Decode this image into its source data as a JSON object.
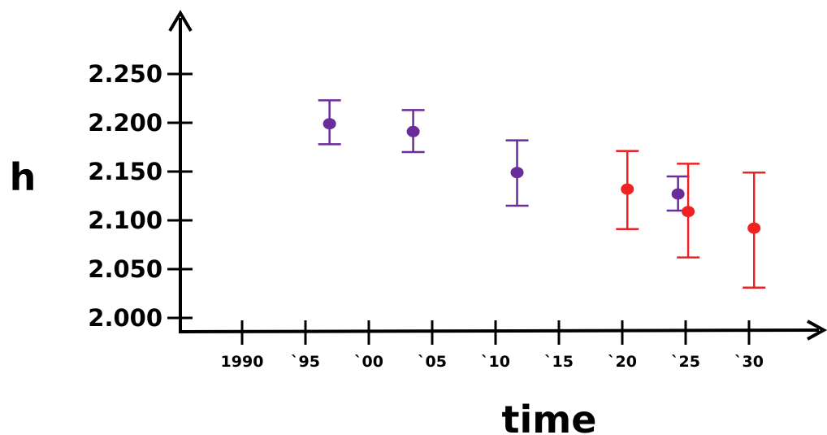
{
  "chart_data": {
    "type": "scatter",
    "title": "",
    "xlabel": "time",
    "ylabel": "h",
    "xlim": [
      1985,
      2037
    ],
    "ylim": [
      1.99,
      2.3
    ],
    "grid": false,
    "legend": "none",
    "x_ticks": [
      {
        "value": 1990,
        "label": "1990"
      },
      {
        "value": 1995,
        "label": "`95"
      },
      {
        "value": 2000,
        "label": "`00"
      },
      {
        "value": 2005,
        "label": "`05"
      },
      {
        "value": 2010,
        "label": "`10"
      },
      {
        "value": 2015,
        "label": "`15"
      },
      {
        "value": 2020,
        "label": "`20"
      },
      {
        "value": 2025,
        "label": "`25"
      },
      {
        "value": 2030,
        "label": "`30"
      }
    ],
    "y_ticks": [
      {
        "value": 2.0,
        "label": "2.000"
      },
      {
        "value": 2.05,
        "label": "2.050"
      },
      {
        "value": 2.1,
        "label": "2.100"
      },
      {
        "value": 2.15,
        "label": "2.150"
      },
      {
        "value": 2.2,
        "label": "2.200"
      },
      {
        "value": 2.25,
        "label": "2.250"
      }
    ],
    "series": [
      {
        "color": "#6a2c9a",
        "points": [
          {
            "x": 1996.9,
            "y": 2.199,
            "ylow": 2.178,
            "yhigh": 2.223
          },
          {
            "x": 2003.5,
            "y": 2.191,
            "ylow": 2.17,
            "yhigh": 2.213
          },
          {
            "x": 2011.7,
            "y": 2.149,
            "ylow": 2.115,
            "yhigh": 2.182
          },
          {
            "x": 2024.4,
            "y": 2.127,
            "ylow": 2.11,
            "yhigh": 2.145
          }
        ]
      },
      {
        "color": "#ee2222",
        "points": [
          {
            "x": 2020.4,
            "y": 2.132,
            "ylow": 2.091,
            "yhigh": 2.171
          },
          {
            "x": 2025.2,
            "y": 2.109,
            "ylow": 2.062,
            "yhigh": 2.158
          },
          {
            "x": 2030.4,
            "y": 2.092,
            "ylow": 2.031,
            "yhigh": 2.149
          }
        ]
      }
    ]
  }
}
